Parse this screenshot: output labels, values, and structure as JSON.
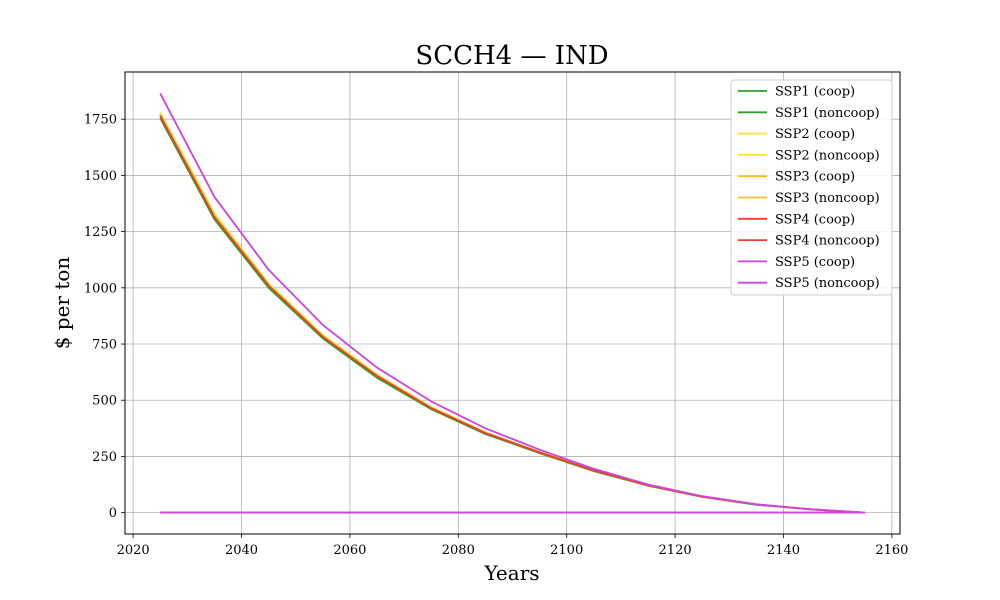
{
  "chart_data": {
    "type": "line",
    "title": "SCCH4 — IND",
    "xlabel": "Years",
    "ylabel": "$ per ton",
    "xlim": [
      2018.5,
      2161.5
    ],
    "ylim": [
      -95,
      1960
    ],
    "xticks": [
      2020,
      2040,
      2060,
      2080,
      2100,
      2120,
      2140,
      2160
    ],
    "yticks": [
      0,
      250,
      500,
      750,
      1000,
      1250,
      1500,
      1750
    ],
    "grid": true,
    "legend_position": "top-right",
    "x": [
      2025,
      2035,
      2045,
      2055,
      2065,
      2075,
      2085,
      2095,
      2105,
      2115,
      2125,
      2135,
      2145,
      2155
    ],
    "series": [
      {
        "name": "SSP1 (coop)",
        "color": "#2ca02c",
        "values": [
          1755,
          1305,
          1000,
          775,
          600,
          460,
          350,
          265,
          185,
          120,
          70,
          35,
          15,
          0
        ]
      },
      {
        "name": "SSP1 (noncoop)",
        "color": "#2ca02c",
        "values": [
          0,
          0,
          0,
          0,
          0,
          0,
          0,
          0,
          0,
          0,
          0,
          0,
          0,
          0
        ]
      },
      {
        "name": "SSP2 (coop)",
        "color": "#ffe135",
        "values": [
          1780,
          1330,
          1020,
          790,
          615,
          470,
          358,
          270,
          190,
          123,
          72,
          36,
          15,
          0
        ]
      },
      {
        "name": "SSP2 (noncoop)",
        "color": "#ffe135",
        "values": [
          0,
          0,
          0,
          0,
          0,
          0,
          0,
          0,
          0,
          0,
          0,
          0,
          0,
          0
        ]
      },
      {
        "name": "SSP3 (coop)",
        "color": "#fbb829",
        "values": [
          1770,
          1320,
          1012,
          785,
          610,
          466,
          355,
          268,
          188,
          122,
          71,
          36,
          15,
          0
        ]
      },
      {
        "name": "SSP3 (noncoop)",
        "color": "#fbb829",
        "values": [
          0,
          0,
          0,
          0,
          0,
          0,
          0,
          0,
          0,
          0,
          0,
          0,
          0,
          0
        ]
      },
      {
        "name": "SSP4 (coop)",
        "color": "#f03c2c",
        "values": [
          1765,
          1315,
          1010,
          782,
          608,
          465,
          354,
          268,
          188,
          122,
          71,
          36,
          15,
          0
        ]
      },
      {
        "name": "SSP4 (noncoop)",
        "color": "#f03c2c",
        "values": [
          0,
          0,
          0,
          0,
          0,
          0,
          0,
          0,
          0,
          0,
          0,
          0,
          0,
          0
        ]
      },
      {
        "name": "SSP5 (coop)",
        "color": "#cc44dd",
        "values": [
          1865,
          1405,
          1080,
          835,
          645,
          495,
          375,
          280,
          195,
          125,
          73,
          37,
          15,
          0
        ]
      },
      {
        "name": "SSP5 (noncoop)",
        "color": "#cc44dd",
        "values": [
          0,
          0,
          0,
          0,
          0,
          0,
          0,
          0,
          0,
          0,
          0,
          0,
          0,
          0
        ]
      }
    ]
  }
}
